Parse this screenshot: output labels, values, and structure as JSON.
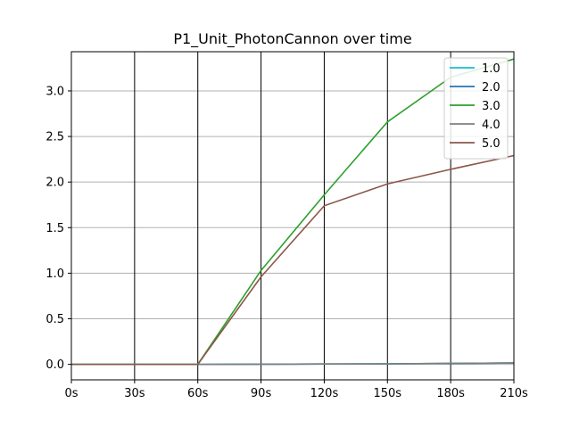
{
  "chart_data": {
    "type": "line",
    "title": "P1_Unit_PhotonCannon over time",
    "xlabel": "",
    "ylabel": "",
    "categories": [
      "0s",
      "30s",
      "60s",
      "90s",
      "120s",
      "150s",
      "180s",
      "210s"
    ],
    "x": [
      0,
      30,
      60,
      90,
      120,
      150,
      180,
      210
    ],
    "xlim": [
      0,
      210
    ],
    "ylim": [
      -0.17,
      3.43
    ],
    "yticks": [
      0.0,
      0.5,
      1.0,
      1.5,
      2.0,
      2.5,
      3.0
    ],
    "ytick_labels": [
      "0.0",
      "0.5",
      "1.0",
      "1.5",
      "2.0",
      "2.5",
      "3.0"
    ],
    "grid": {
      "horizontal": true,
      "vertical_lines_at_x_ticks": true
    },
    "legend_placement": "top-right",
    "series": [
      {
        "name": "1.0",
        "color": "#17becf",
        "values": [
          0,
          0,
          0,
          0.002,
          0.004,
          0.006,
          0.01,
          0.015
        ]
      },
      {
        "name": "2.0",
        "color": "#1f77b4",
        "values": [
          0,
          0,
          0,
          0.002,
          0.004,
          0.006,
          0.01,
          0.015
        ]
      },
      {
        "name": "3.0",
        "color": "#2ca02c",
        "values": [
          0,
          0,
          0,
          1.03,
          1.86,
          2.66,
          3.15,
          3.35
        ]
      },
      {
        "name": "4.0",
        "color": "#7f7f7f",
        "values": [
          0,
          0,
          0,
          0.002,
          0.004,
          0.006,
          0.01,
          0.015
        ]
      },
      {
        "name": "5.0",
        "color": "#8c564b",
        "values": [
          0,
          0,
          0,
          0.96,
          1.74,
          1.98,
          2.14,
          2.29
        ]
      }
    ]
  }
}
